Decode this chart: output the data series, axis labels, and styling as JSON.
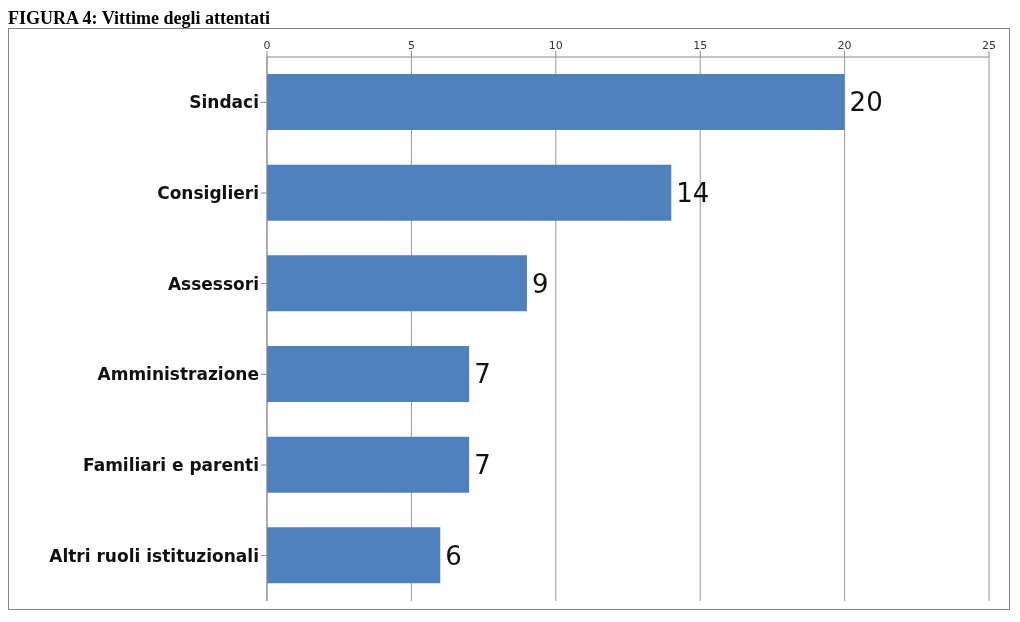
{
  "chart_data": {
    "type": "bar",
    "title": "FIGURA 4: Vittime degli attentati",
    "orientation": "horizontal",
    "categories": [
      "Sindaci",
      "Consiglieri",
      "Assessori",
      "Amministrazione",
      "Familiari e parenti",
      "Altri ruoli istituzionali"
    ],
    "values": [
      20,
      14,
      9,
      7,
      7,
      6
    ],
    "color": "#4f81bd",
    "xlim": [
      0,
      25
    ],
    "xticks": [
      0,
      5,
      10,
      15,
      20,
      25
    ],
    "grid": "x",
    "data_labels": true
  }
}
